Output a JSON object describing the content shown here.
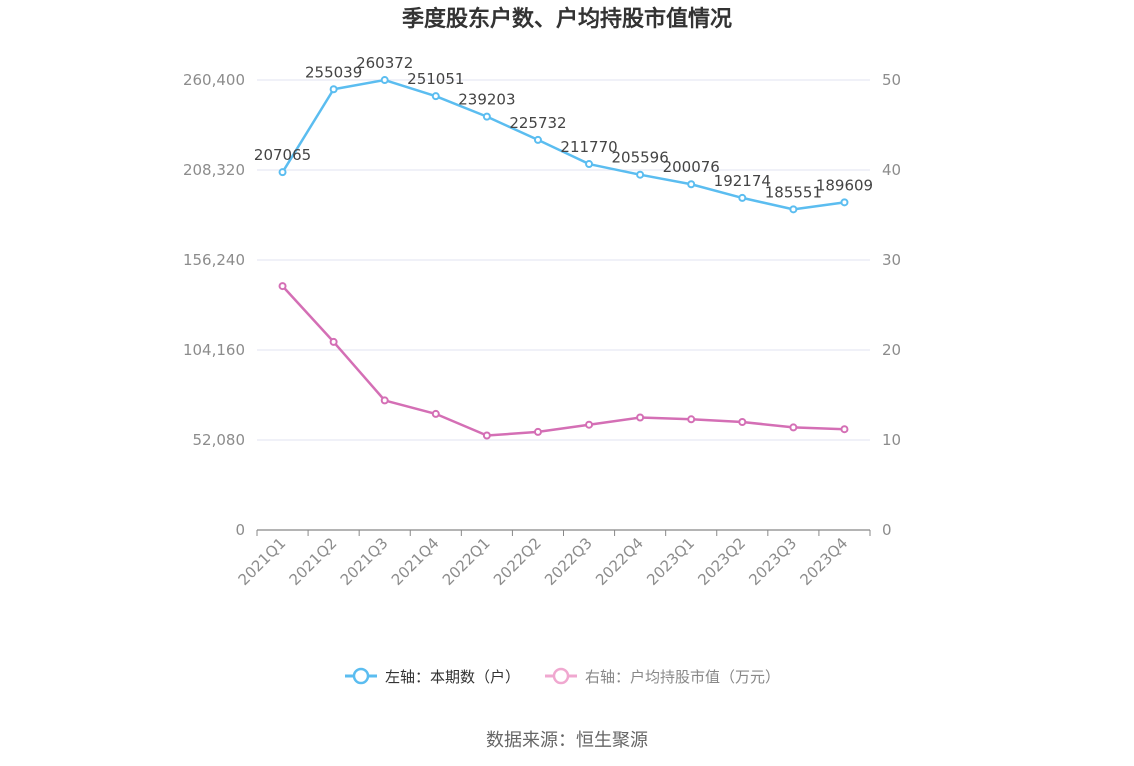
{
  "chart_data": {
    "type": "line",
    "title": "季度股东户数、户均持股市值情况",
    "categories": [
      "2021Q1",
      "2021Q2",
      "2021Q3",
      "2021Q4",
      "2022Q1",
      "2022Q2",
      "2022Q3",
      "2022Q4",
      "2023Q1",
      "2023Q2",
      "2023Q3",
      "2023Q4"
    ],
    "left_axis": {
      "ylim": [
        0,
        260400
      ],
      "ticks": [
        "0",
        "52,080",
        "104,160",
        "156,240",
        "208,320",
        "260,400"
      ]
    },
    "right_axis": {
      "ylim": [
        0,
        50
      ],
      "ticks": [
        "0",
        "10",
        "20",
        "30",
        "40",
        "50"
      ]
    },
    "grid": true,
    "legend_position": "bottom",
    "series": [
      {
        "name": "左轴：本期数（户）",
        "axis": "left",
        "color": "#5bbdf0",
        "values": [
          207065,
          255039,
          260372,
          251051,
          239203,
          225732,
          211770,
          205596,
          200076,
          192174,
          185551,
          189609
        ],
        "labels": [
          "207065",
          "255039",
          "260372",
          "251051",
          "239203",
          "225732",
          "211770",
          "205596",
          "200076",
          "192174",
          "185551",
          "189609"
        ]
      },
      {
        "name": "右轴：户均持股市值（万元）",
        "axis": "right",
        "color": "#d46fb5",
        "legend_color": "#f0a8d0",
        "values": [
          27.1,
          20.9,
          14.4,
          12.9,
          10.5,
          10.9,
          11.7,
          12.5,
          12.3,
          12.0,
          11.4,
          11.2
        ]
      }
    ]
  },
  "source": "数据来源：恒生聚源"
}
